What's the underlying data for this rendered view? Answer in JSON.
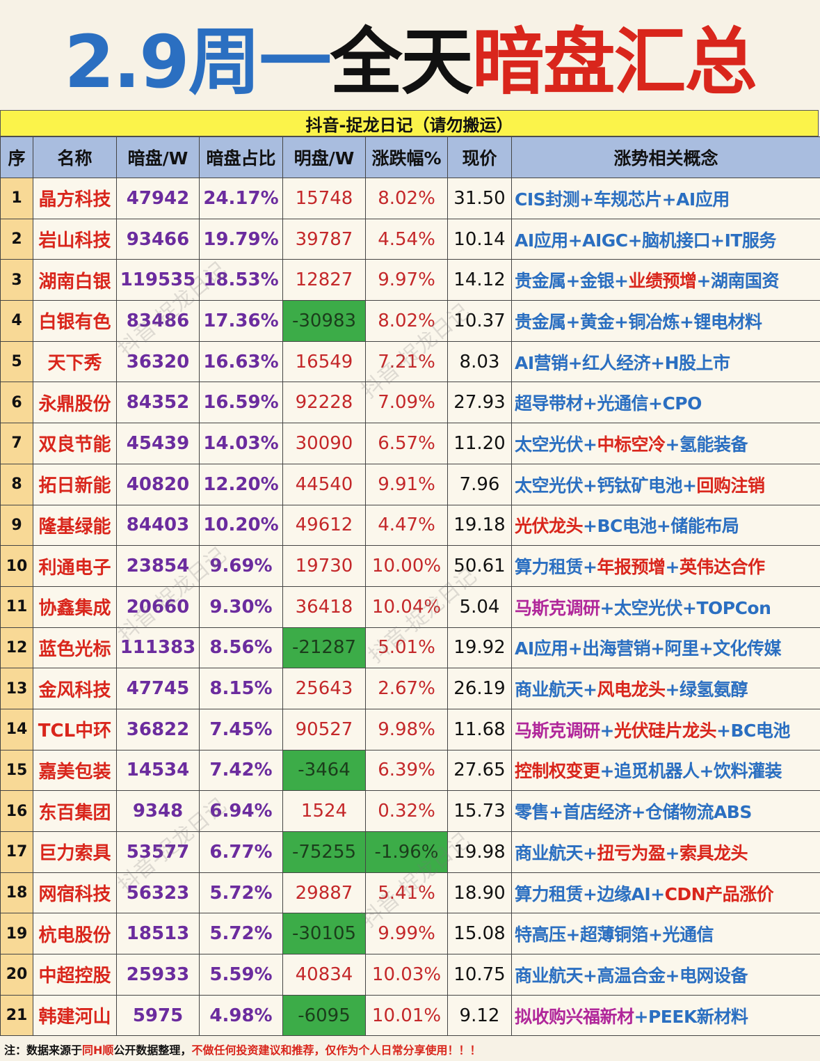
{
  "title": {
    "part1": "2.9周一",
    "part2": "全天",
    "part3": "暗盘汇总"
  },
  "subtitle": "抖音-捉龙日记（请勿搬运）",
  "headers": [
    "序",
    "名称",
    "暗盘/W",
    "暗盘占比",
    "明盘/W",
    "涨跌幅%",
    "现价",
    "涨势相关概念"
  ],
  "rows": [
    {
      "idx": "1",
      "name": "晶方科技",
      "an": "47942",
      "pct": "24.17%",
      "ming": "15748",
      "chg": "8.02%",
      "price": "31.50",
      "concept": [
        {
          "t": "CIS封测",
          "c": "blue"
        },
        {
          "t": "+",
          "c": "plus"
        },
        {
          "t": "车规芯片",
          "c": "blue"
        },
        {
          "t": "+",
          "c": "plus"
        },
        {
          "t": "AI应用",
          "c": "blue"
        }
      ]
    },
    {
      "idx": "2",
      "name": "岩山科技",
      "an": "93466",
      "pct": "19.79%",
      "ming": "39787",
      "chg": "4.54%",
      "price": "10.14",
      "concept": [
        {
          "t": "AI应用",
          "c": "blue"
        },
        {
          "t": "+",
          "c": "plus"
        },
        {
          "t": "AIGC",
          "c": "blue"
        },
        {
          "t": "+",
          "c": "plus"
        },
        {
          "t": "脑机接口",
          "c": "blue"
        },
        {
          "t": "+",
          "c": "plus"
        },
        {
          "t": "IT服务",
          "c": "blue"
        }
      ]
    },
    {
      "idx": "3",
      "name": "湖南白银",
      "an": "119535",
      "pct": "18.53%",
      "ming": "12827",
      "chg": "9.97%",
      "price": "14.12",
      "concept": [
        {
          "t": "贵金属",
          "c": "blue"
        },
        {
          "t": "+",
          "c": "plus"
        },
        {
          "t": "金银",
          "c": "blue"
        },
        {
          "t": "+",
          "c": "plus"
        },
        {
          "t": "业绩预增",
          "c": "red"
        },
        {
          "t": "+",
          "c": "plus"
        },
        {
          "t": "湖南国资",
          "c": "blue"
        }
      ]
    },
    {
      "idx": "4",
      "name": "白银有色",
      "an": "83486",
      "pct": "17.36%",
      "ming": "-30983",
      "chg": "8.02%",
      "price": "10.37",
      "concept": [
        {
          "t": "贵金属",
          "c": "blue"
        },
        {
          "t": "+",
          "c": "plus"
        },
        {
          "t": "黄金",
          "c": "blue"
        },
        {
          "t": "+",
          "c": "plus"
        },
        {
          "t": "铜冶炼",
          "c": "blue"
        },
        {
          "t": "+",
          "c": "plus"
        },
        {
          "t": "锂电材料",
          "c": "blue"
        }
      ]
    },
    {
      "idx": "5",
      "name": "天下秀",
      "an": "36320",
      "pct": "16.63%",
      "ming": "16549",
      "chg": "7.21%",
      "price": "8.03",
      "concept": [
        {
          "t": "AI营销",
          "c": "blue"
        },
        {
          "t": "+",
          "c": "plus"
        },
        {
          "t": "红人经济",
          "c": "blue"
        },
        {
          "t": "+",
          "c": "plus"
        },
        {
          "t": "H股上市",
          "c": "blue"
        }
      ]
    },
    {
      "idx": "6",
      "name": "永鼎股份",
      "an": "84352",
      "pct": "16.59%",
      "ming": "92228",
      "chg": "7.09%",
      "price": "27.93",
      "concept": [
        {
          "t": "超导带材",
          "c": "blue"
        },
        {
          "t": "+",
          "c": "plus"
        },
        {
          "t": "光通信",
          "c": "blue"
        },
        {
          "t": "+",
          "c": "plus"
        },
        {
          "t": "CPO",
          "c": "blue"
        }
      ]
    },
    {
      "idx": "7",
      "name": "双良节能",
      "an": "45439",
      "pct": "14.03%",
      "ming": "30090",
      "chg": "6.57%",
      "price": "11.20",
      "concept": [
        {
          "t": "太空光伏",
          "c": "blue"
        },
        {
          "t": "+",
          "c": "plus"
        },
        {
          "t": "中标空冷",
          "c": "red"
        },
        {
          "t": "+",
          "c": "plus"
        },
        {
          "t": "氢能装备",
          "c": "blue"
        }
      ]
    },
    {
      "idx": "8",
      "name": "拓日新能",
      "an": "40820",
      "pct": "12.20%",
      "ming": "44540",
      "chg": "9.91%",
      "price": "7.96",
      "concept": [
        {
          "t": "太空光伏",
          "c": "blue"
        },
        {
          "t": "+",
          "c": "plus"
        },
        {
          "t": "钙钛矿电池",
          "c": "blue"
        },
        {
          "t": "+",
          "c": "plus"
        },
        {
          "t": "回购注销",
          "c": "red"
        }
      ]
    },
    {
      "idx": "9",
      "name": "隆基绿能",
      "an": "84403",
      "pct": "10.20%",
      "ming": "49612",
      "chg": "4.47%",
      "price": "19.18",
      "concept": [
        {
          "t": "光伏龙头",
          "c": "red"
        },
        {
          "t": "+",
          "c": "plus"
        },
        {
          "t": "BC电池",
          "c": "blue"
        },
        {
          "t": "+",
          "c": "plus"
        },
        {
          "t": "储能布局",
          "c": "blue"
        }
      ]
    },
    {
      "idx": "10",
      "name": "利通电子",
      "an": "23854",
      "pct": "9.69%",
      "ming": "19730",
      "chg": "10.00%",
      "price": "50.61",
      "concept": [
        {
          "t": "算力租赁",
          "c": "blue"
        },
        {
          "t": "+",
          "c": "plus"
        },
        {
          "t": "年报预增",
          "c": "red"
        },
        {
          "t": "+",
          "c": "plus"
        },
        {
          "t": "英伟达合作",
          "c": "red"
        }
      ]
    },
    {
      "idx": "11",
      "name": "协鑫集成",
      "an": "20660",
      "pct": "9.30%",
      "ming": "36418",
      "chg": "10.04%",
      "price": "5.04",
      "concept": [
        {
          "t": "马斯克调研",
          "c": "mag"
        },
        {
          "t": "+",
          "c": "plus"
        },
        {
          "t": "太空光伏",
          "c": "blue"
        },
        {
          "t": "+",
          "c": "plus"
        },
        {
          "t": "TOPCon",
          "c": "blue"
        }
      ]
    },
    {
      "idx": "12",
      "name": "蓝色光标",
      "an": "111383",
      "pct": "8.56%",
      "ming": "-21287",
      "chg": "5.01%",
      "price": "19.92",
      "concept": [
        {
          "t": "AI应用",
          "c": "blue"
        },
        {
          "t": "+",
          "c": "plus"
        },
        {
          "t": "出海营销",
          "c": "blue"
        },
        {
          "t": "+",
          "c": "plus"
        },
        {
          "t": "阿里",
          "c": "blue"
        },
        {
          "t": "+",
          "c": "plus"
        },
        {
          "t": "文化传媒",
          "c": "blue"
        }
      ]
    },
    {
      "idx": "13",
      "name": "金风科技",
      "an": "47745",
      "pct": "8.15%",
      "ming": "25643",
      "chg": "2.67%",
      "price": "26.19",
      "concept": [
        {
          "t": "商业航天",
          "c": "blue"
        },
        {
          "t": "+",
          "c": "plus"
        },
        {
          "t": "风电龙头",
          "c": "red"
        },
        {
          "t": "+",
          "c": "plus"
        },
        {
          "t": "绿氢氨醇",
          "c": "blue"
        }
      ]
    },
    {
      "idx": "14",
      "name": "TCL中环",
      "an": "36822",
      "pct": "7.45%",
      "ming": "90527",
      "chg": "9.98%",
      "price": "11.68",
      "concept": [
        {
          "t": "马斯克调研",
          "c": "mag"
        },
        {
          "t": "+",
          "c": "plus"
        },
        {
          "t": "光伏硅片龙头",
          "c": "red"
        },
        {
          "t": "+",
          "c": "plus"
        },
        {
          "t": "BC电池",
          "c": "blue"
        }
      ]
    },
    {
      "idx": "15",
      "name": "嘉美包装",
      "an": "14534",
      "pct": "7.42%",
      "ming": "-3464",
      "chg": "6.39%",
      "price": "27.65",
      "concept": [
        {
          "t": "控制权变更",
          "c": "red"
        },
        {
          "t": "+",
          "c": "plus"
        },
        {
          "t": "追觅机器人",
          "c": "blue"
        },
        {
          "t": "+",
          "c": "plus"
        },
        {
          "t": "饮料灌装",
          "c": "blue"
        }
      ]
    },
    {
      "idx": "16",
      "name": "东百集团",
      "an": "9348",
      "pct": "6.94%",
      "ming": "1524",
      "chg": "0.32%",
      "price": "15.73",
      "concept": [
        {
          "t": "零售",
          "c": "blue"
        },
        {
          "t": "+",
          "c": "plus"
        },
        {
          "t": "首店经济",
          "c": "blue"
        },
        {
          "t": "+",
          "c": "plus"
        },
        {
          "t": "仓储物流ABS",
          "c": "blue"
        }
      ]
    },
    {
      "idx": "17",
      "name": "巨力索具",
      "an": "53577",
      "pct": "6.77%",
      "ming": "-75255",
      "chg": "-1.96%",
      "price": "19.98",
      "concept": [
        {
          "t": "商业航天",
          "c": "blue"
        },
        {
          "t": "+",
          "c": "plus"
        },
        {
          "t": "扭亏为盈",
          "c": "red"
        },
        {
          "t": "+",
          "c": "plus"
        },
        {
          "t": "索具龙头",
          "c": "red"
        }
      ]
    },
    {
      "idx": "18",
      "name": "网宿科技",
      "an": "56323",
      "pct": "5.72%",
      "ming": "29887",
      "chg": "5.41%",
      "price": "18.90",
      "concept": [
        {
          "t": "算力租赁",
          "c": "blue"
        },
        {
          "t": "+",
          "c": "plus"
        },
        {
          "t": "边缘AI",
          "c": "blue"
        },
        {
          "t": "+",
          "c": "plus"
        },
        {
          "t": "CDN产品涨价",
          "c": "red"
        }
      ]
    },
    {
      "idx": "19",
      "name": "杭电股份",
      "an": "18513",
      "pct": "5.72%",
      "ming": "-30105",
      "chg": "9.99%",
      "price": "15.08",
      "concept": [
        {
          "t": "特高压",
          "c": "blue"
        },
        {
          "t": "+",
          "c": "plus"
        },
        {
          "t": "超薄铜箔",
          "c": "blue"
        },
        {
          "t": "+",
          "c": "plus"
        },
        {
          "t": "光通信",
          "c": "blue"
        }
      ]
    },
    {
      "idx": "20",
      "name": "中超控股",
      "an": "25933",
      "pct": "5.59%",
      "ming": "40834",
      "chg": "10.03%",
      "price": "10.75",
      "concept": [
        {
          "t": "商业航天",
          "c": "blue"
        },
        {
          "t": "+",
          "c": "plus"
        },
        {
          "t": "高温合金",
          "c": "blue"
        },
        {
          "t": "+",
          "c": "plus"
        },
        {
          "t": "电网设备",
          "c": "blue"
        }
      ]
    },
    {
      "idx": "21",
      "name": "韩建河山",
      "an": "5975",
      "pct": "4.98%",
      "ming": "-6095",
      "chg": "10.01%",
      "price": "9.12",
      "concept": [
        {
          "t": "拟收购兴福新材",
          "c": "mag"
        },
        {
          "t": "+",
          "c": "plus"
        },
        {
          "t": "PEEK新材料",
          "c": "blue"
        }
      ]
    }
  ],
  "note": {
    "p1": "注：数据来源于",
    "p2": "同H顺",
    "p3": "公开数据整理，",
    "p4": "不做任何投资建议和推荐，仅作为个人日常分享使用！！！"
  },
  "watermark": "抖音-捉龙日记",
  "colors": {
    "name_red": "#d9261c",
    "concept_blue": "#2b6fc1",
    "negative_green": "#3cac48",
    "header_blue": "#a9bddf",
    "subtitle_yellow": "#fbf34a",
    "index_orange": "#f8d996"
  }
}
